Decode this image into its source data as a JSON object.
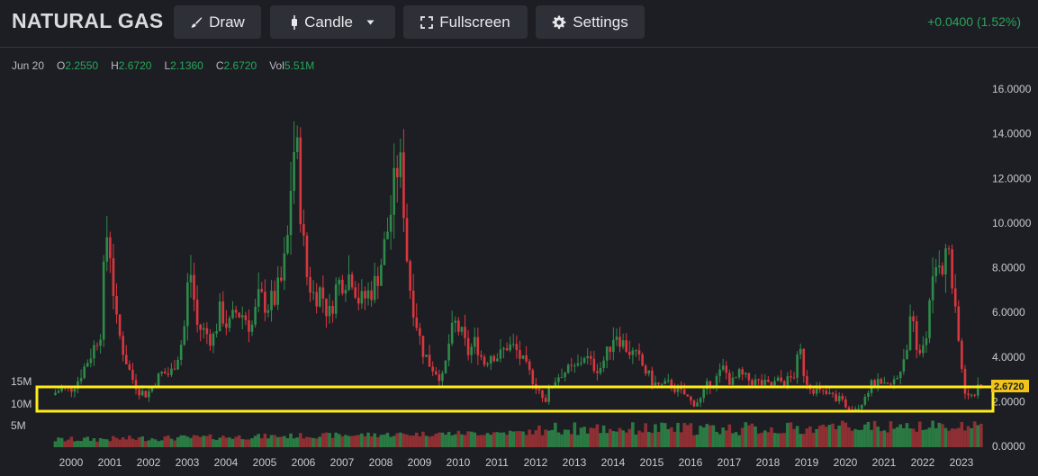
{
  "header": {
    "title": "NATURAL GAS",
    "buttons": {
      "draw": "Draw",
      "candle": "Candle",
      "fullscreen": "Fullscreen",
      "settings": "Settings"
    },
    "change": "+0.0400 (1.52%)"
  },
  "ohlc": {
    "date": "Jun 20",
    "open_label": "O",
    "open": "2.2550",
    "high_label": "H",
    "high": "2.6720",
    "low_label": "L",
    "low": "2.1360",
    "close_label": "C",
    "close": "2.6720",
    "vol_label": "Vol",
    "vol": "5.51M"
  },
  "colors": {
    "up": "#2e8b4a",
    "down": "#d9363e",
    "vol_up": "#2b7a43",
    "vol_down": "#8e2f33",
    "highlight": "#ffec1a",
    "last_price_bg": "#f0c419",
    "green_text": "#26a65b"
  },
  "icons": {
    "draw": "brush-icon",
    "candle": "candlestick-icon",
    "fullscreen": "fullscreen-icon",
    "settings": "gear-icon",
    "dropdown": "chevron-down-icon"
  },
  "chart_data": {
    "type": "candlestick",
    "title": "NATURAL GAS",
    "x_ticks": [
      "2000",
      "2001",
      "2002",
      "2003",
      "2004",
      "2005",
      "2006",
      "2007",
      "2008",
      "2009",
      "2010",
      "2011",
      "2012",
      "2013",
      "2014",
      "2015",
      "2016",
      "2017",
      "2018",
      "2019",
      "2020",
      "2021",
      "2022",
      "2023"
    ],
    "y_ticks": [
      "16.0000",
      "14.0000",
      "12.0000",
      "10.0000",
      "8.0000",
      "6.0000",
      "4.0000",
      "2.0000",
      "0.0000"
    ],
    "ylim": [
      0,
      16
    ],
    "volume_ticks": [
      "15M",
      "10M",
      "5M"
    ],
    "last_price": "2.6720",
    "price_path": [
      [
        1999.55,
        2.3
      ],
      [
        1999.8,
        2.6
      ],
      [
        2000.0,
        2.5
      ],
      [
        2000.2,
        2.9
      ],
      [
        2000.4,
        3.6
      ],
      [
        2000.6,
        4.3
      ],
      [
        2000.8,
        5.2
      ],
      [
        2000.95,
        9.6
      ],
      [
        2001.05,
        8.8
      ],
      [
        2001.2,
        5.6
      ],
      [
        2001.4,
        4.2
      ],
      [
        2001.6,
        3.1
      ],
      [
        2001.8,
        2.5
      ],
      [
        2002.0,
        2.3
      ],
      [
        2002.2,
        2.9
      ],
      [
        2002.4,
        3.3
      ],
      [
        2002.6,
        3.2
      ],
      [
        2002.8,
        4.1
      ],
      [
        2002.95,
        5.0
      ],
      [
        2003.1,
        8.2
      ],
      [
        2003.3,
        5.4
      ],
      [
        2003.5,
        5.1
      ],
      [
        2003.7,
        4.8
      ],
      [
        2003.9,
        6.1
      ],
      [
        2004.1,
        5.3
      ],
      [
        2004.3,
        6.0
      ],
      [
        2004.5,
        5.9
      ],
      [
        2004.7,
        5.3
      ],
      [
        2004.9,
        6.7
      ],
      [
        2005.1,
        6.3
      ],
      [
        2005.3,
        6.6
      ],
      [
        2005.5,
        7.5
      ],
      [
        2005.65,
        9.5
      ],
      [
        2005.75,
        12.8
      ],
      [
        2005.85,
        13.8
      ],
      [
        2005.95,
        11.2
      ],
      [
        2006.1,
        7.8
      ],
      [
        2006.3,
        6.8
      ],
      [
        2006.5,
        7.0
      ],
      [
        2006.7,
        5.8
      ],
      [
        2006.9,
        7.2
      ],
      [
        2007.1,
        7.6
      ],
      [
        2007.3,
        7.7
      ],
      [
        2007.5,
        6.4
      ],
      [
        2007.7,
        6.8
      ],
      [
        2007.9,
        7.3
      ],
      [
        2008.1,
        8.6
      ],
      [
        2008.3,
        10.5
      ],
      [
        2008.5,
        12.9
      ],
      [
        2008.6,
        11.8
      ],
      [
        2008.75,
        7.6
      ],
      [
        2008.95,
        5.7
      ],
      [
        2009.1,
        4.4
      ],
      [
        2009.3,
        3.7
      ],
      [
        2009.5,
        3.3
      ],
      [
        2009.65,
        3.0
      ],
      [
        2009.8,
        4.6
      ],
      [
        2009.95,
        5.5
      ],
      [
        2010.1,
        5.1
      ],
      [
        2010.3,
        4.2
      ],
      [
        2010.5,
        4.7
      ],
      [
        2010.7,
        3.7
      ],
      [
        2010.9,
        4.2
      ],
      [
        2011.1,
        4.0
      ],
      [
        2011.3,
        4.5
      ],
      [
        2011.5,
        4.4
      ],
      [
        2011.7,
        3.8
      ],
      [
        2011.9,
        3.2
      ],
      [
        2012.1,
        2.6
      ],
      [
        2012.3,
        2.1
      ],
      [
        2012.5,
        2.9
      ],
      [
        2012.7,
        3.3
      ],
      [
        2012.9,
        3.4
      ],
      [
        2013.1,
        3.5
      ],
      [
        2013.3,
        4.1
      ],
      [
        2013.5,
        3.6
      ],
      [
        2013.7,
        3.5
      ],
      [
        2013.9,
        4.2
      ],
      [
        2014.1,
        5.2
      ],
      [
        2014.3,
        4.6
      ],
      [
        2014.5,
        4.2
      ],
      [
        2014.7,
        3.9
      ],
      [
        2014.9,
        3.3
      ],
      [
        2015.1,
        2.8
      ],
      [
        2015.3,
        2.7
      ],
      [
        2015.5,
        2.8
      ],
      [
        2015.7,
        2.5
      ],
      [
        2015.9,
        2.3
      ],
      [
        2016.1,
        1.9
      ],
      [
        2016.3,
        2.1
      ],
      [
        2016.5,
        2.8
      ],
      [
        2016.7,
        3.0
      ],
      [
        2016.9,
        3.5
      ],
      [
        2017.1,
        2.8
      ],
      [
        2017.3,
        3.2
      ],
      [
        2017.5,
        3.0
      ],
      [
        2017.7,
        2.9
      ],
      [
        2017.9,
        2.8
      ],
      [
        2018.1,
        2.7
      ],
      [
        2018.3,
        2.9
      ],
      [
        2018.5,
        2.9
      ],
      [
        2018.7,
        3.1
      ],
      [
        2018.87,
        4.3
      ],
      [
        2019.0,
        3.0
      ],
      [
        2019.2,
        2.6
      ],
      [
        2019.4,
        2.4
      ],
      [
        2019.6,
        2.3
      ],
      [
        2019.8,
        2.2
      ],
      [
        2020.0,
        1.9
      ],
      [
        2020.2,
        1.7
      ],
      [
        2020.4,
        1.8
      ],
      [
        2020.6,
        2.5
      ],
      [
        2020.8,
        2.9
      ],
      [
        2021.0,
        2.6
      ],
      [
        2021.2,
        2.7
      ],
      [
        2021.4,
        3.1
      ],
      [
        2021.6,
        4.3
      ],
      [
        2021.75,
        5.8
      ],
      [
        2021.9,
        4.0
      ],
      [
        2022.1,
        4.8
      ],
      [
        2022.3,
        7.2
      ],
      [
        2022.45,
        8.7
      ],
      [
        2022.6,
        8.0
      ],
      [
        2022.7,
        9.3
      ],
      [
        2022.85,
        6.2
      ],
      [
        2023.0,
        4.2
      ],
      [
        2023.1,
        2.7
      ],
      [
        2023.2,
        2.2
      ],
      [
        2023.35,
        2.3
      ],
      [
        2023.45,
        2.67
      ]
    ]
  }
}
